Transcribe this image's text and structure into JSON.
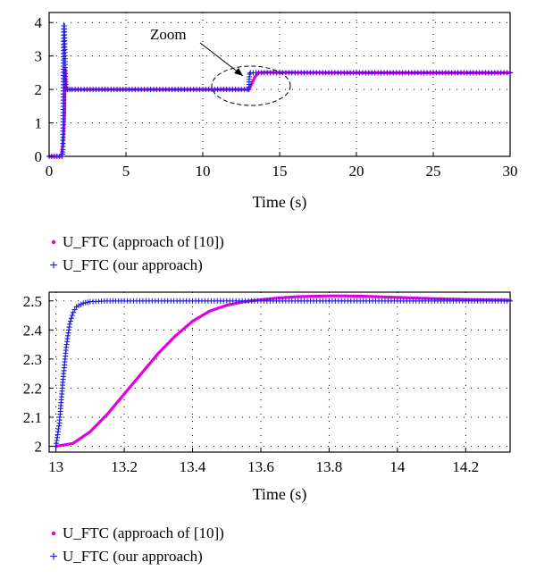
{
  "chart_data": [
    {
      "type": "line",
      "xlabel": "Time (s)",
      "ylabel": "",
      "xlim": [
        0,
        30
      ],
      "ylim": [
        0,
        4.3
      ],
      "xticks": [
        "0",
        "5",
        "10",
        "15",
        "20",
        "25",
        "30"
      ],
      "yticks": [
        "0",
        "1",
        "2",
        "3",
        "4"
      ],
      "grid": true,
      "annotation": "Zoom",
      "legend_position": "below",
      "series": [
        {
          "name": "U_FTC (approach of [10])",
          "marker": "dot",
          "color": "#e100e1",
          "x": [
            0,
            0.8,
            0.9,
            1.0,
            1.05,
            1.1,
            1.2,
            1.5,
            5,
            10,
            12.9,
            13.0,
            13.2,
            13.4,
            13.6,
            14,
            20,
            30
          ],
          "y": [
            0,
            0,
            0.4,
            1.2,
            2.6,
            2.0,
            2.0,
            2.0,
            2.0,
            2.0,
            2.0,
            2.0,
            2.19,
            2.38,
            2.5,
            2.51,
            2.5,
            2.5
          ]
        },
        {
          "name": "U_FTC (our approach)",
          "marker": "plus",
          "color": "#1f1fd6",
          "x": [
            0,
            0.85,
            0.9,
            0.95,
            1.0,
            1.05,
            1.1,
            1.2,
            1.5,
            5,
            10,
            12.9,
            13.0,
            13.02,
            13.05,
            13.1,
            14,
            20,
            30
          ],
          "y": [
            0,
            0,
            0.2,
            3.9,
            3.9,
            2.3,
            2.0,
            2.0,
            2.0,
            2.0,
            2.0,
            2.0,
            2.0,
            2.3,
            2.46,
            2.5,
            2.5,
            2.5,
            2.5
          ]
        }
      ]
    },
    {
      "type": "line",
      "xlabel": "Time (s)",
      "ylabel": "",
      "xlim": [
        12.98,
        14.33
      ],
      "ylim": [
        1.98,
        2.53
      ],
      "xticks": [
        "13",
        "13.2",
        "13.4",
        "13.6",
        "13.8",
        "14",
        "14.2"
      ],
      "yticks": [
        "2",
        "2.1",
        "2.2",
        "2.3",
        "2.4",
        "2.5"
      ],
      "grid": true,
      "legend_position": "below",
      "series": [
        {
          "name": "U_FTC (approach of [10])",
          "marker": "dot",
          "color": "#e100e1",
          "x": [
            13.0,
            13.05,
            13.1,
            13.15,
            13.2,
            13.25,
            13.3,
            13.35,
            13.4,
            13.45,
            13.5,
            13.55,
            13.6,
            13.65,
            13.7,
            13.75,
            13.8,
            13.85,
            13.9,
            13.95,
            14.0,
            14.1,
            14.2,
            14.33
          ],
          "y": [
            2.0,
            2.01,
            2.05,
            2.11,
            2.18,
            2.25,
            2.32,
            2.38,
            2.43,
            2.465,
            2.485,
            2.497,
            2.504,
            2.51,
            2.514,
            2.516,
            2.517,
            2.517,
            2.516,
            2.514,
            2.512,
            2.508,
            2.505,
            2.502
          ]
        },
        {
          "name": "U_FTC (our approach)",
          "marker": "plus",
          "color": "#1f1fd6",
          "x": [
            13.0,
            13.01,
            13.02,
            13.03,
            13.04,
            13.05,
            13.06,
            13.08,
            13.1,
            13.15,
            13.2,
            13.4,
            13.6,
            13.8,
            14.0,
            14.2,
            14.33
          ],
          "y": [
            2.0,
            2.08,
            2.22,
            2.34,
            2.42,
            2.46,
            2.48,
            2.492,
            2.497,
            2.5,
            2.5,
            2.5,
            2.5,
            2.5,
            2.5,
            2.5,
            2.5
          ]
        }
      ]
    }
  ]
}
